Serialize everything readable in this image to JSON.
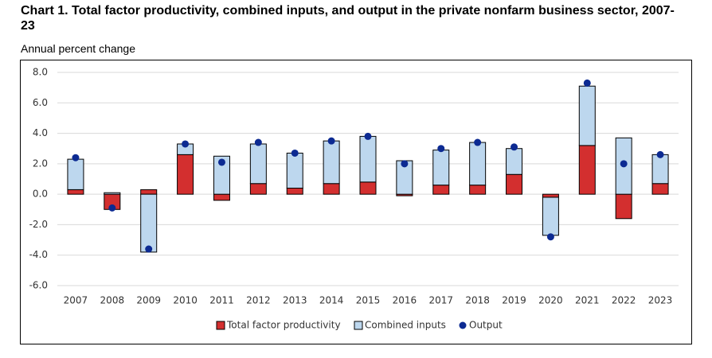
{
  "chart_data": {
    "type": "stacked_bar_dot",
    "title": "Chart 1. Total factor productivity, combined inputs, and output in the private nonfarm business sector, 2007-23",
    "y_label": "Annual percent change",
    "categories": [
      "2007",
      "2008",
      "2009",
      "2010",
      "2011",
      "2012",
      "2013",
      "2014",
      "2015",
      "2016",
      "2017",
      "2018",
      "2019",
      "2020",
      "2021",
      "2022",
      "2023"
    ],
    "series": [
      {
        "name": "Total factor productivity",
        "color": "#d32f2f",
        "kind": "bar",
        "values": [
          0.3,
          -1.0,
          0.3,
          2.6,
          -0.4,
          0.7,
          0.4,
          0.7,
          0.8,
          -0.1,
          0.6,
          0.6,
          1.3,
          -0.2,
          3.2,
          -1.6,
          0.7
        ]
      },
      {
        "name": "Combined inputs",
        "color": "#bdd7ee",
        "kind": "bar",
        "values": [
          2.0,
          0.1,
          -3.8,
          0.7,
          2.5,
          2.6,
          2.3,
          2.8,
          3.0,
          2.2,
          2.3,
          2.8,
          1.7,
          -2.5,
          3.9,
          3.7,
          1.9
        ]
      },
      {
        "name": "Output",
        "color": "#0c2a92",
        "kind": "dot",
        "values": [
          2.4,
          -0.9,
          -3.6,
          3.3,
          2.1,
          3.4,
          2.7,
          3.5,
          3.8,
          2.0,
          3.0,
          3.4,
          3.1,
          -2.8,
          7.3,
          2.0,
          2.6
        ]
      }
    ],
    "ylim": [
      -6,
      8
    ],
    "yticks": [
      {
        "value": -6,
        "label": "-6.0"
      },
      {
        "value": -4,
        "label": "-4.0"
      },
      {
        "value": -2,
        "label": "-2.0"
      },
      {
        "value": 0,
        "label": "0.0"
      },
      {
        "value": 2,
        "label": "2.0"
      },
      {
        "value": 4,
        "label": "4.0"
      },
      {
        "value": 6,
        "label": "6.0"
      },
      {
        "value": 8,
        "label": "8.0"
      }
    ],
    "grid": true,
    "legend": "bottom"
  }
}
